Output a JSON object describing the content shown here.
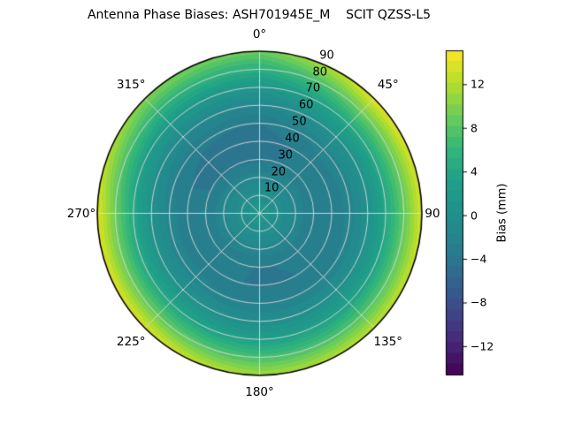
{
  "title": "Antenna Phase Biases: ASH701945E_M    SCIT QZSS-L5",
  "chart_data": {
    "type": "heatmap",
    "projection": "polar",
    "title": "Antenna Phase Biases: ASH701945E_M    SCIT QZSS-L5",
    "grid": true,
    "azimuth_axis": {
      "range_deg": [
        0,
        360
      ],
      "tick_step_deg": 45,
      "zero_location": "top",
      "direction": "clockwise"
    },
    "radial_axis": {
      "range": [
        0,
        90
      ],
      "tick_step": 10,
      "tick_label_azimuth_deg": 22.5
    },
    "azimuth_ticks": [
      {
        "deg": 0,
        "label": "0°"
      },
      {
        "deg": 45,
        "label": "45°"
      },
      {
        "deg": 90,
        "label": "90"
      },
      {
        "deg": 135,
        "label": "135°"
      },
      {
        "deg": 180,
        "label": "180°"
      },
      {
        "deg": 225,
        "label": "225°"
      },
      {
        "deg": 270,
        "label": "270°"
      },
      {
        "deg": 315,
        "label": "315°"
      }
    ],
    "radial_ticks": [
      {
        "r": 10,
        "label": "10"
      },
      {
        "r": 20,
        "label": "20"
      },
      {
        "r": 30,
        "label": "30"
      },
      {
        "r": 40,
        "label": "40"
      },
      {
        "r": 50,
        "label": "50"
      },
      {
        "r": 60,
        "label": "60"
      },
      {
        "r": 70,
        "label": "70"
      },
      {
        "r": 80,
        "label": "80"
      },
      {
        "r": 90,
        "label": "90"
      }
    ],
    "colorbar": {
      "label": "Bias (mm)",
      "vmin": -14.6,
      "vmax": 15.1,
      "level_step_mm": 1,
      "ticks": [
        {
          "value": 12,
          "label": "12"
        },
        {
          "value": 8,
          "label": "8"
        },
        {
          "value": 4,
          "label": "4"
        },
        {
          "value": 0,
          "label": "0"
        },
        {
          "value": -4,
          "label": "−4"
        },
        {
          "value": -8,
          "label": "−8"
        },
        {
          "value": -12,
          "label": "−12"
        }
      ],
      "position": "right"
    },
    "colormap": {
      "name": "viridis",
      "stops": [
        "#440154",
        "#482878",
        "#3e4989",
        "#31688e",
        "#26828e",
        "#21918c",
        "#1fa088",
        "#35b779",
        "#6ece58",
        "#b5de2b",
        "#fde725"
      ]
    },
    "bias_profile_mm": {
      "comment": "azimuth-averaged bias vs zenith ring",
      "r": [
        0,
        10,
        20,
        30,
        40,
        50,
        60,
        70,
        80,
        90
      ],
      "bias": [
        1.0,
        0.0,
        -2.0,
        -3.5,
        -3.5,
        -2.5,
        0.0,
        3.5,
        8.0,
        12.7
      ]
    },
    "rim_bias_by_azimuth_mm": {
      "azimuth_deg": [
        0,
        45,
        90,
        135,
        180,
        225,
        270,
        315
      ],
      "bias": [
        9.0,
        14.2,
        13.5,
        12.5,
        11.5,
        13.8,
        14.0,
        10.0
      ]
    },
    "grid_color": "#dcdcdc",
    "outline_color": "#000000",
    "background_color": "#ffffff"
  }
}
